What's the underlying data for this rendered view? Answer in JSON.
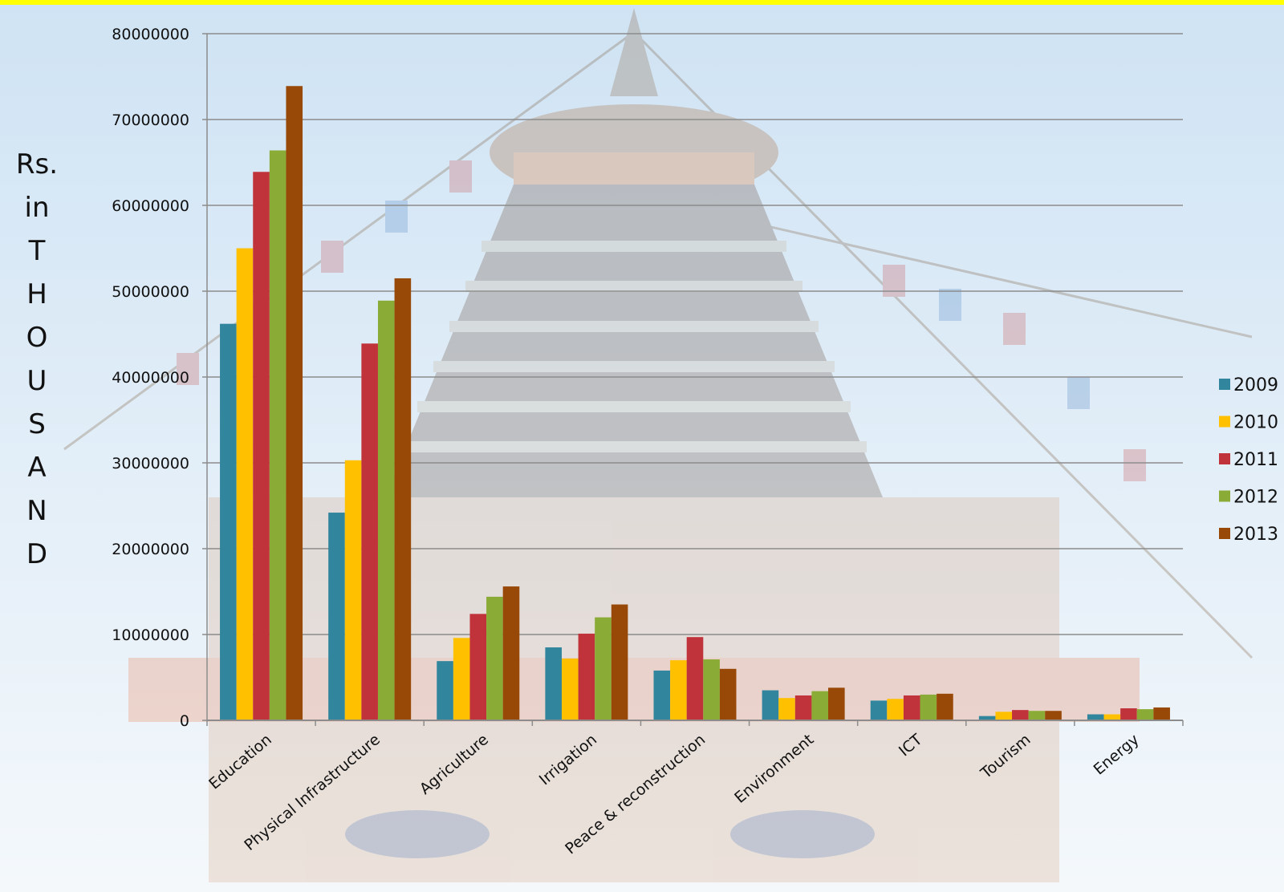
{
  "chart_data": {
    "type": "bar",
    "ylabel_lines": [
      "Rs.",
      "in",
      "T",
      "H",
      "O",
      "U",
      "S",
      "A",
      "N",
      "D"
    ],
    "yticks": [
      "0",
      "10000000",
      "20000000",
      "30000000",
      "40000000",
      "50000000",
      "60000000",
      "70000000",
      "80000000"
    ],
    "ylim": [
      0,
      80000000
    ],
    "grid": true,
    "legend_position": "right",
    "categories": [
      "Education",
      "Physical Infrastructure",
      "Agriculture",
      "Irrigation",
      "Peace & reconstruction",
      "Environment",
      "ICT",
      "Tourism",
      "Energy"
    ],
    "series": [
      {
        "name": "2009",
        "color": "#31859c",
        "values": [
          46200000,
          24200000,
          6900000,
          8500000,
          5800000,
          3500000,
          2300000,
          500000,
          700000
        ]
      },
      {
        "name": "2010",
        "color": "#ffc000",
        "values": [
          55000000,
          30300000,
          9600000,
          7200000,
          7000000,
          2600000,
          2500000,
          1000000,
          700000
        ]
      },
      {
        "name": "2011",
        "color": "#c0333a",
        "values": [
          63900000,
          43900000,
          12400000,
          10100000,
          9700000,
          2900000,
          2900000,
          1200000,
          1400000
        ]
      },
      {
        "name": "2012",
        "color": "#8aab35",
        "values": [
          66400000,
          48900000,
          14400000,
          12000000,
          7100000,
          3400000,
          3000000,
          1100000,
          1300000
        ]
      },
      {
        "name": "2013",
        "color": "#984807",
        "values": [
          73900000,
          51500000,
          15600000,
          13500000,
          6000000,
          3800000,
          3100000,
          1100000,
          1500000
        ]
      }
    ]
  }
}
